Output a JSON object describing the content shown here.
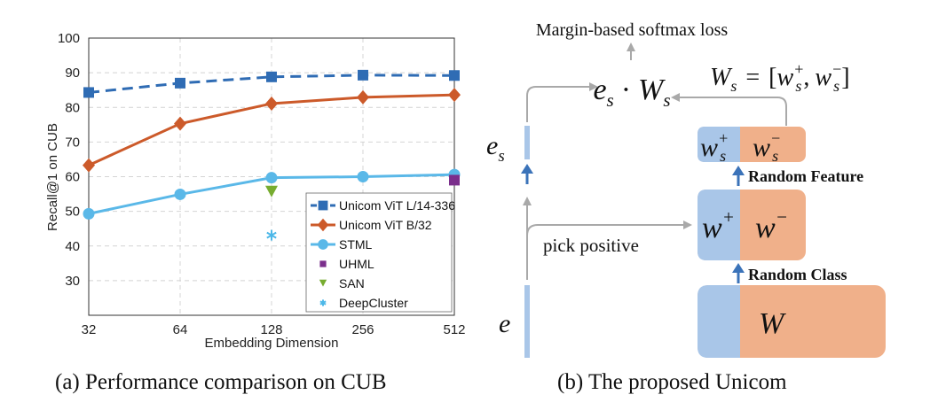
{
  "chart_data": {
    "type": "line",
    "xlabel": "Embedding Dimension",
    "ylabel": "Recall@1 on CUB",
    "x_scale": "log2",
    "categories": [
      "32",
      "64",
      "128",
      "256",
      "512"
    ],
    "x": [
      32,
      64,
      128,
      256,
      512
    ],
    "ylim": [
      20,
      100
    ],
    "yticks": [
      30,
      40,
      50,
      60,
      70,
      80,
      90,
      100
    ],
    "grid": true,
    "legend_position": "bottom-right",
    "series": [
      {
        "name": "Unicom ViT L/14-336",
        "style": "dashed",
        "marker": "square",
        "color": "#2f6cb4",
        "x": [
          32,
          64,
          128,
          256,
          512
        ],
        "values": [
          84.3,
          87.0,
          88.8,
          89.3,
          89.2
        ]
      },
      {
        "name": "Unicom ViT B/32",
        "style": "solid",
        "marker": "diamond",
        "color": "#cc5a2a",
        "x": [
          32,
          64,
          128,
          256,
          512
        ],
        "values": [
          63.3,
          75.3,
          81.1,
          82.9,
          83.6
        ]
      },
      {
        "name": "STML",
        "style": "solid",
        "marker": "circle",
        "color": "#5ab8e8",
        "x": [
          32,
          64,
          128,
          256,
          512
        ],
        "values": [
          49.3,
          54.9,
          59.7,
          60.0,
          60.6
        ]
      },
      {
        "name": "UHML",
        "style": "none",
        "marker": "square",
        "color": "#7b2f8c",
        "x": [
          512
        ],
        "values": [
          59.0
        ]
      },
      {
        "name": "SAN",
        "style": "none",
        "marker": "triangle-down",
        "color": "#77ac30",
        "x": [
          128
        ],
        "values": [
          55.6
        ]
      },
      {
        "name": "DeepCluster",
        "style": "none",
        "marker": "asterisk",
        "color": "#4db8e8",
        "x": [
          128
        ],
        "values": [
          43.1
        ]
      }
    ]
  },
  "diagram": {
    "loss_label": "Margin-based softmax loss",
    "product": {
      "left": "e",
      "left_sub": "s",
      "op": "·",
      "right": "W",
      "right_sub": "s"
    },
    "ws_def": {
      "lhs": "W",
      "lhs_sub": "s",
      "eq": "=",
      "rhs_open": "[",
      "w": "w",
      "plus": "+",
      "minus": "−",
      "sub": "s",
      "comma": ",",
      "rhs_close": "]"
    },
    "es_label": {
      "base": "e",
      "sub": "s"
    },
    "e_label": "e",
    "pick_positive": "pick positive",
    "random_feature": "Random Feature",
    "random_class": "Random Class",
    "top_box": {
      "left": "w",
      "left_sup": "+",
      "left_sub": "s",
      "right": "w",
      "right_sup": "−",
      "right_sub": "s"
    },
    "mid_box": {
      "left": "w",
      "left_sup": "+",
      "right": "w",
      "right_sup": "−"
    },
    "bottom_box": {
      "label": "W"
    }
  },
  "captions": {
    "left": "(a)  Performance comparison on CUB",
    "right": "(b)  The proposed Unicom"
  }
}
